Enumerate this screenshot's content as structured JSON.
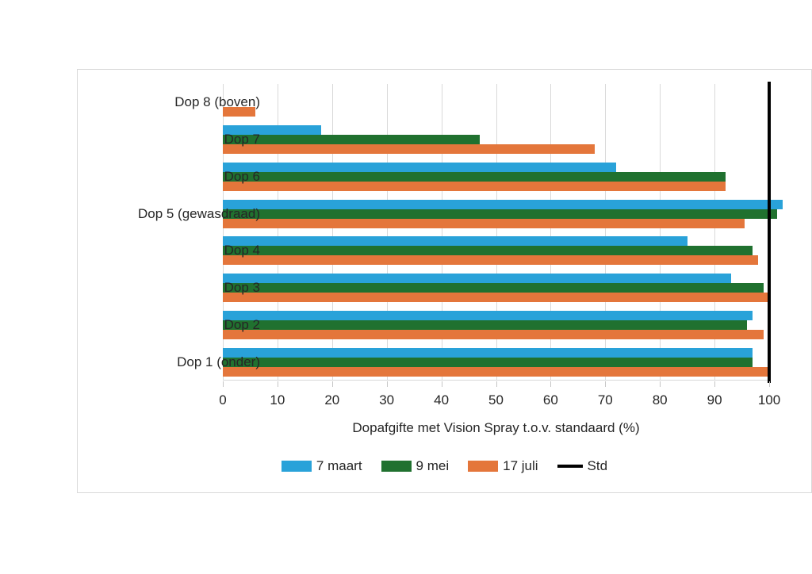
{
  "chart_data": {
    "type": "bar",
    "orientation": "horizontal",
    "title": "",
    "categories": [
      "Dop 8 (boven)",
      "Dop 7",
      "Dop 6",
      "Dop 5 (gewasdraad)",
      "Dop 4",
      "Dop 3",
      "Dop 2",
      "Dop 1 (onder)"
    ],
    "series": [
      {
        "name": "7 maart",
        "color": "#29a2d9",
        "values": [
          0,
          18,
          72,
          102.5,
          85,
          93,
          97,
          97
        ]
      },
      {
        "name": "9 mei",
        "color": "#20712f",
        "values": [
          0,
          47,
          92,
          101.5,
          97,
          99,
          96,
          97
        ]
      },
      {
        "name": "17 juli",
        "color": "#e4763b",
        "values": [
          6,
          68,
          92,
          95.5,
          98,
          100,
          99,
          100
        ]
      }
    ],
    "reference_line": {
      "name": "Std",
      "value": 100,
      "color": "#000000"
    },
    "xlabel": "Dopafgifte met Vision Spray t.o.v. standaard (%)",
    "ylabel": "",
    "xlim": [
      0,
      100
    ],
    "xticks": [
      0,
      10,
      20,
      30,
      40,
      50,
      60,
      70,
      80,
      90,
      100
    ],
    "grid": true,
    "legend_position": "bottom"
  },
  "style": {
    "gridline_color": "#d9d9d9",
    "panel_border_color": "#d9d9d9",
    "text_color": "#262626",
    "background": "#ffffff"
  }
}
